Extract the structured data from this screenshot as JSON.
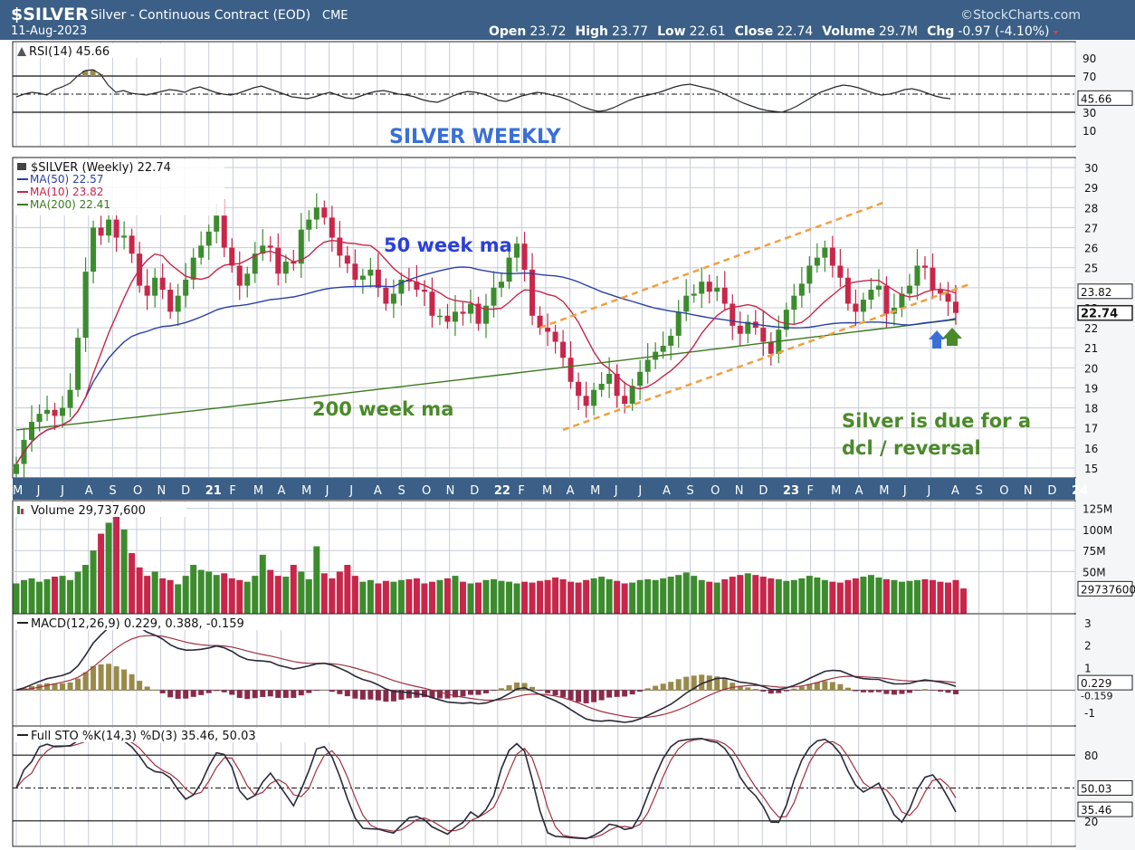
{
  "header": {
    "symbol": "$SILVER",
    "name": "Silver - Continuous Contract (EOD)",
    "exchange": "CME",
    "date": "11-Aug-2023",
    "brand": "©StockCharts.com",
    "ohlc": [
      {
        "label": "Open",
        "value": "23.72"
      },
      {
        "label": "High",
        "value": "23.77"
      },
      {
        "label": "Low",
        "value": "22.61"
      },
      {
        "label": "Close",
        "value": "22.74"
      },
      {
        "label": "Volume",
        "value": "29.7M"
      },
      {
        "label": "Chg",
        "value": "-0.97 (-4.10%)"
      }
    ]
  },
  "colors": {
    "header_bg": "#3b5f86",
    "panel_bg": "#ffffff",
    "grid": "#c7ccd6",
    "up": "#3c8c2e",
    "down": "#c8264a",
    "ma50": "#2b3fa8",
    "ma10": "#c8264a",
    "ma200": "#3d7a1e",
    "channel": "#f0a040",
    "annotation_blue": "#3a6fd8",
    "annotation_green": "#4a8a2a"
  },
  "rsi": {
    "legend": "RSI(14) 45.66",
    "current": "45.66",
    "ticks": [
      "90",
      "70",
      "50",
      "30",
      "10"
    ],
    "tick_values": [
      90,
      70,
      50,
      30,
      10
    ],
    "overbought": 70,
    "oversold": 30,
    "values": [
      47,
      50,
      52,
      51,
      49,
      55,
      58,
      62,
      70,
      76,
      77,
      72,
      60,
      52,
      54,
      51,
      50,
      49,
      51,
      53,
      55,
      54,
      52,
      56,
      58,
      55,
      52,
      50,
      49,
      51,
      54,
      57,
      59,
      56,
      53,
      50,
      47,
      46,
      45,
      47,
      50,
      52,
      49,
      46,
      45,
      48,
      51,
      53,
      54,
      52,
      50,
      49,
      47,
      44,
      42,
      41,
      44,
      48,
      51,
      53,
      52,
      50,
      47,
      43,
      42,
      45,
      48,
      50,
      52,
      51,
      49,
      47,
      44,
      40,
      36,
      33,
      31,
      32,
      35,
      39,
      43,
      46,
      48,
      50,
      52,
      55,
      58,
      60,
      61,
      59,
      57,
      55,
      52,
      48,
      44,
      40,
      37,
      34,
      32,
      31,
      30,
      33,
      37,
      42,
      47,
      52,
      55,
      58,
      60,
      59,
      57,
      54,
      51,
      49,
      50,
      52,
      55,
      56,
      54,
      51,
      48,
      46,
      45
    ]
  },
  "annotations": {
    "title": "SILVER WEEKLY",
    "ma50_label": "50 week ma",
    "ma200_label": "200 week ma",
    "note_line1": "Silver is due for a",
    "note_line2": "dcl / reversal"
  },
  "price": {
    "legend_symbol": "$SILVER (Weekly) 22.74",
    "legend_ma50": "MA(50) 22.57",
    "legend_ma10": "MA(10) 23.82",
    "legend_ma200": "MA(200) 22.41",
    "ticks": [
      "30",
      "29",
      "28",
      "27",
      "26",
      "25",
      "24",
      "23",
      "22",
      "21",
      "20",
      "19",
      "18",
      "17",
      "16",
      "15"
    ],
    "tick_values": [
      30,
      29,
      28,
      27,
      26,
      25,
      24,
      23,
      22,
      21,
      20,
      19,
      18,
      17,
      16,
      15
    ],
    "ylim": [
      14.5,
      30.5
    ],
    "tag_ma10": "23.82",
    "tag_close": "22.74",
    "channel": {
      "upper": [
        {
          "i": 68,
          "y": 22.0
        },
        {
          "i": 113,
          "y": 28.3
        }
      ],
      "lower": [
        {
          "i": 71,
          "y": 16.9
        },
        {
          "i": 124,
          "y": 24.2
        }
      ]
    }
  },
  "x_axis": {
    "labels": [
      "M",
      "J",
      "J",
      "A",
      "S",
      "O",
      "N",
      "D",
      "21",
      "F",
      "M",
      "A",
      "M",
      "J",
      "J",
      "A",
      "S",
      "O",
      "N",
      "D",
      "22",
      "F",
      "M",
      "A",
      "M",
      "J",
      "J",
      "A",
      "S",
      "O",
      "N",
      "D",
      "23",
      "F",
      "M",
      "A",
      "M",
      "J",
      "J",
      "A",
      "S",
      "O",
      "N",
      "D",
      "24"
    ],
    "bold_labels": [
      "21",
      "22",
      "23",
      "24"
    ]
  },
  "volume": {
    "legend": "Volume 29,737,600",
    "ticks": [
      "125M",
      "100M",
      "75M",
      "50M"
    ],
    "tick_values": [
      125,
      100,
      75,
      50
    ],
    "tag": "29737600",
    "ymax": 130,
    "values_millions": [
      36,
      40,
      42,
      38,
      41,
      44,
      45,
      40,
      50,
      58,
      75,
      95,
      108,
      118,
      100,
      72,
      55,
      45,
      50,
      42,
      40,
      35,
      45,
      58,
      52,
      50,
      46,
      48,
      42,
      40,
      38,
      45,
      70,
      52,
      45,
      44,
      58,
      50,
      41,
      80,
      48,
      42,
      50,
      58,
      45,
      38,
      40,
      36,
      39,
      38,
      40,
      41,
      42,
      36,
      38,
      40,
      42,
      45,
      38,
      36,
      37,
      40,
      41,
      39,
      38,
      36,
      38,
      37,
      39,
      40,
      43,
      41,
      38,
      37,
      40,
      42,
      44,
      41,
      39,
      36,
      37,
      40,
      41,
      40,
      42,
      44,
      46,
      49,
      45,
      40,
      38,
      37,
      41,
      44,
      46,
      48,
      46,
      44,
      42,
      41,
      39,
      40,
      42,
      45,
      43,
      40,
      38,
      37,
      40,
      42,
      44,
      46,
      43,
      41,
      40,
      38,
      39,
      40,
      41,
      40,
      38,
      37,
      40,
      30
    ]
  },
  "macd": {
    "legend": "MACD(12,26,9) 0.229, 0.388, -0.159",
    "ticks": [
      "3",
      "2",
      "1",
      "-1"
    ],
    "tick_values": [
      3,
      2,
      1,
      -1
    ],
    "ylim": [
      -1.6,
      3.4
    ],
    "tag_macd": "0.229",
    "tag_hist": "-0.159"
  },
  "sto": {
    "legend": "Full STO %K(14,3) %D(3) 35.46, 50.03",
    "ticks": [
      "80",
      "20"
    ],
    "tick_values": [
      80,
      20
    ],
    "tag_d": "50.03",
    "tag_k": "35.46"
  },
  "chart_data": {
    "type": "candlestick",
    "title": "$SILVER Silver - Continuous Contract (EOD)",
    "period": "weekly",
    "range": "May 2020 – Aug 2023",
    "close_anchor_weeks": [
      0,
      6,
      10,
      14,
      22,
      30,
      38,
      44,
      52,
      58,
      64,
      70,
      80,
      88,
      96,
      101,
      104,
      108,
      110,
      114,
      116,
      120,
      124
    ],
    "close_anchor_values": [
      15.2,
      18.0,
      19.6,
      27.1,
      24.8,
      23.9,
      26.1,
      25.5,
      22.3,
      22.8,
      23.2,
      22.5,
      25.3,
      23.8,
      22.9,
      21.8,
      23.7,
      20.7,
      21.8,
      19.3,
      18.2,
      20.2,
      18.0
    ],
    "close": [
      15.2,
      16.4,
      17.3,
      17.7,
      17.9,
      17.6,
      18.0,
      18.9,
      21.5,
      24.8,
      27.0,
      26.6,
      27.4,
      26.5,
      26.6,
      25.7,
      24.1,
      23.6,
      24.5,
      23.9,
      22.8,
      23.6,
      24.4,
      25.5,
      26.1,
      26.8,
      27.6,
      26.0,
      25.1,
      24.1,
      24.7,
      25.7,
      26.1,
      26.0,
      24.7,
      25.3,
      25.2,
      26.9,
      27.4,
      28.0,
      27.5,
      26.5,
      25.6,
      25.2,
      24.4,
      24.6,
      24.9,
      24.0,
      23.2,
      23.7,
      24.4,
      24.3,
      23.9,
      23.8,
      22.6,
      22.6,
      22.3,
      22.8,
      22.7,
      23.2,
      22.2,
      23.1,
      24.0,
      24.3,
      25.5,
      26.2,
      24.9,
      22.6,
      22.0,
      21.8,
      21.3,
      20.5,
      19.3,
      18.6,
      18.1,
      18.9,
      19.2,
      19.7,
      18.6,
      18.2,
      19.1,
      19.8,
      20.4,
      20.8,
      21.1,
      21.6,
      22.8,
      23.6,
      23.7,
      24.3,
      23.8,
      24.0,
      23.2,
      22.1,
      21.7,
      22.3,
      22.0,
      21.3,
      20.7,
      21.9,
      22.9,
      23.6,
      24.2,
      25.1,
      25.5,
      26.0,
      25.1,
      24.5,
      23.2,
      22.8,
      23.4,
      23.9,
      24.1,
      22.7,
      23.0,
      23.7,
      24.1,
      25.1,
      25.0,
      23.9,
      23.7,
      23.3,
      22.74
    ],
    "ma10_final": 23.82,
    "ma50_final": 22.57,
    "ma200_final": 22.41,
    "ylim": [
      14.5,
      30.5
    ]
  }
}
